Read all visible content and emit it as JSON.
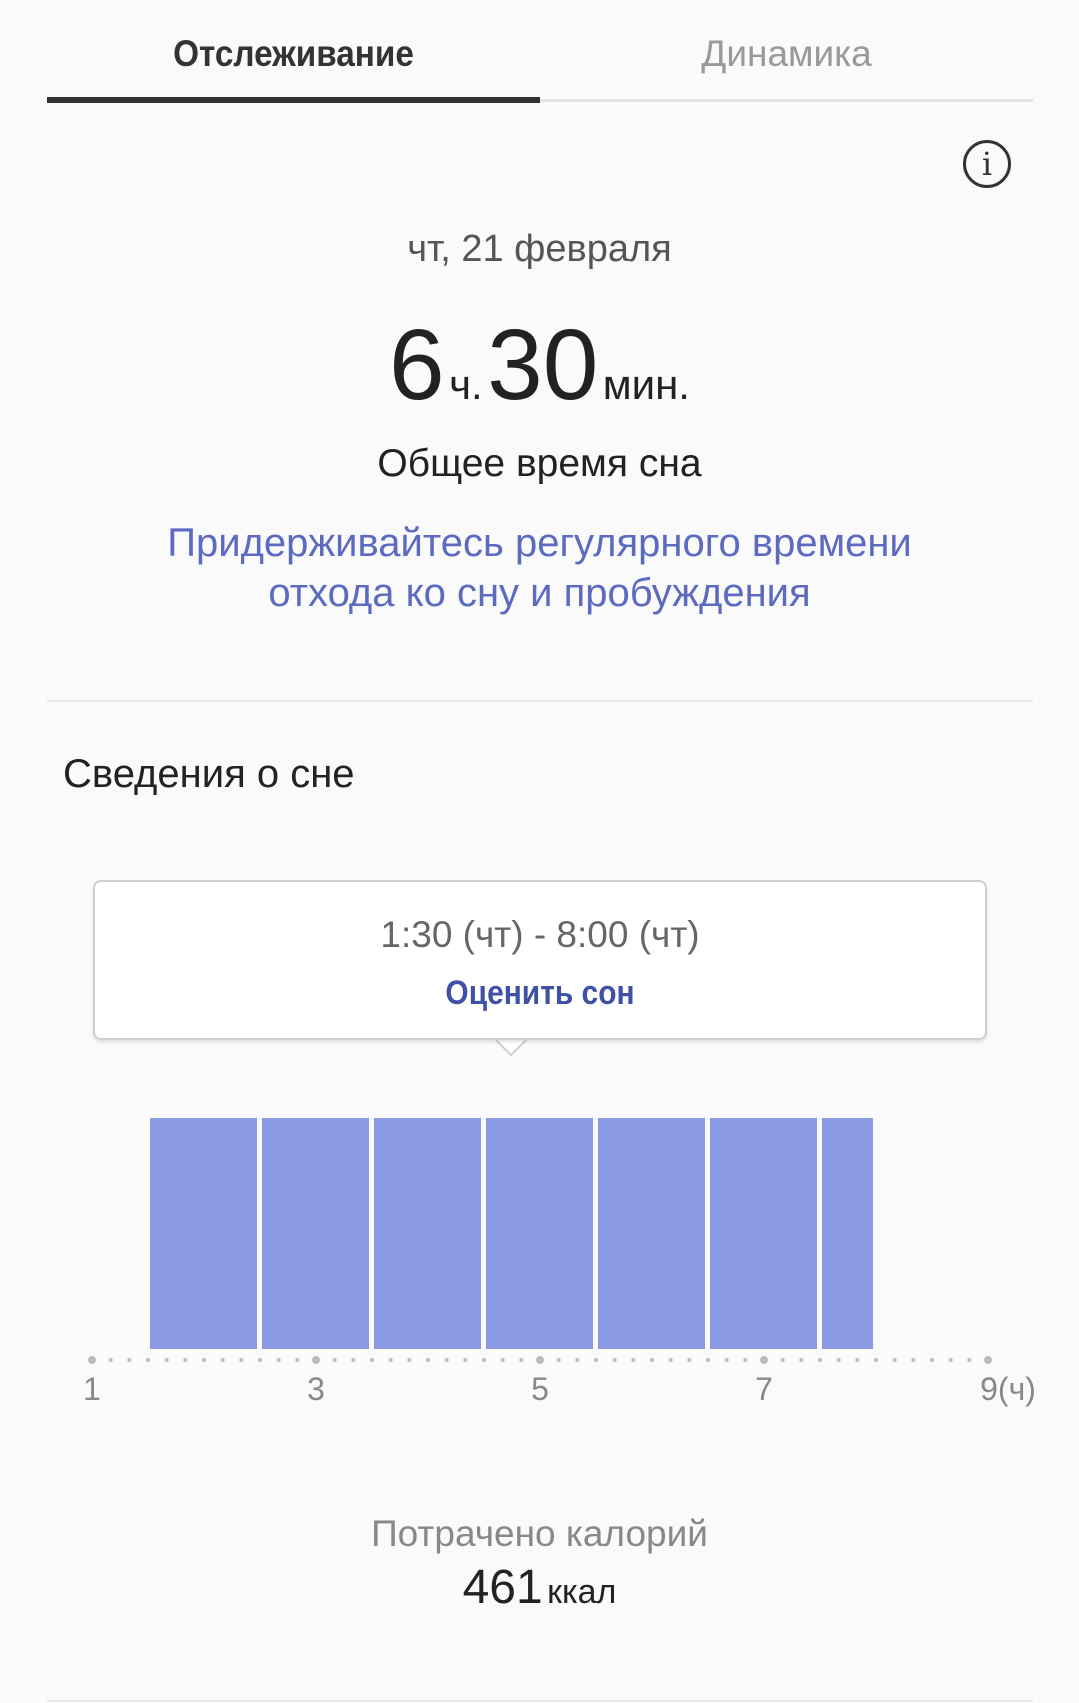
{
  "tabs": [
    {
      "label": "Отслеживание",
      "active": true
    },
    {
      "label": "Динамика",
      "active": false
    }
  ],
  "info_icon": "info-circle-icon",
  "date": "чт, 21 февраля",
  "duration": {
    "hours": "6",
    "hours_unit": "ч.",
    "minutes": "30",
    "minutes_unit": "мин."
  },
  "duration_label": "Общее время сна",
  "advice": [
    "Придерживайтесь регулярного времени",
    "отхода ко сну и пробуждения"
  ],
  "section_title": "Сведения о сне",
  "tooltip": {
    "time_range": "1:30 (чт) - 8:00 (чт)",
    "rate_label": "Оценить сон"
  },
  "calories": {
    "label": "Потрачено калорий",
    "value": "461",
    "unit": "ккал"
  },
  "colors": {
    "accent": "#5c6bc0",
    "bar": "#8b9be3",
    "rate": "#3f51a5"
  },
  "chart_data": {
    "type": "bar",
    "xlim": [
      1,
      9
    ],
    "x_ticks": [
      "1",
      "3",
      "5",
      "7",
      "9(ч)"
    ],
    "segments": [
      [
        1.5,
        2.5
      ],
      [
        2.5,
        3.5
      ],
      [
        3.5,
        4.5
      ],
      [
        4.5,
        5.5
      ],
      [
        5.5,
        6.5
      ],
      [
        6.5,
        7.5
      ],
      [
        7.5,
        8.0
      ]
    ]
  }
}
